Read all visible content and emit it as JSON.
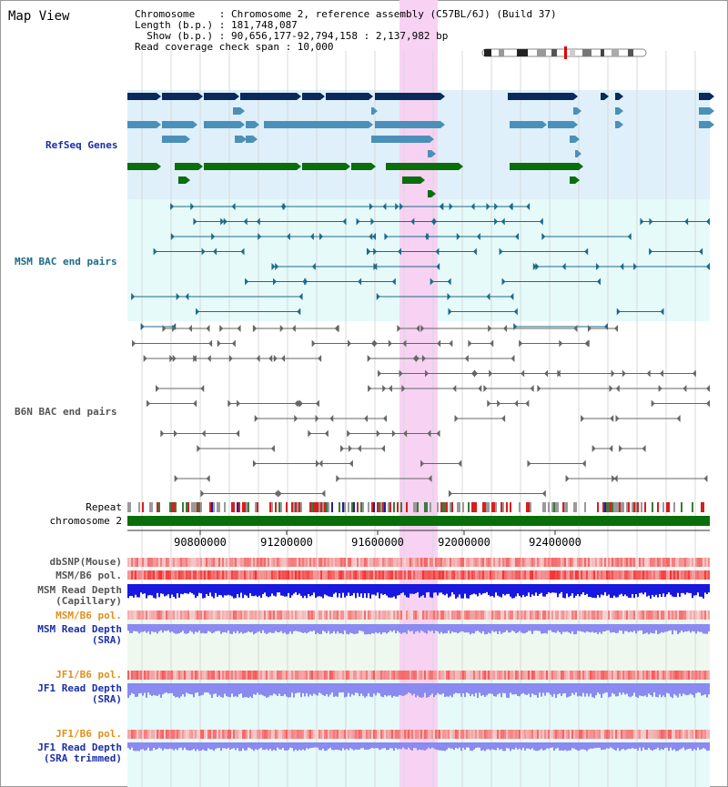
{
  "view_title": "Map View",
  "info": {
    "chromosome": "Chromosome    : Chromosome 2, reference assembly (C57BL/6J) (Build 37)",
    "length": "Length (b.p.) : 181,748,087",
    "show": "  Show (b.p.) : 90,656,177-92,794,158 : 2,137,982 bp",
    "coverage": "Read coverage check span : 10,000"
  },
  "tracks": {
    "refseq": "RefSeq Genes",
    "msm_bac": "MSM BAC end pairs",
    "b6n_bac": "B6N BAC end pairs",
    "repeat": "Repeat",
    "chromosome": "chromosome 2",
    "dbsnp": "dbSNP(Mouse)",
    "msm_b6_pol_1": "MSM/B6 pol.",
    "msm_depth_cap_1": "MSM Read Depth",
    "msm_depth_cap_2": "(Capillary)",
    "msm_b6_pol_2": "MSM/B6 pol.",
    "msm_depth_sra_1": "MSM Read Depth",
    "msm_depth_sra_2": "(SRA)",
    "jf1_b6_pol_1": "JF1/B6 pol.",
    "jf1_depth_sra_1": "JF1 Read Depth",
    "jf1_depth_sra_2": "(SRA)",
    "jf1_b6_pol_2": "JF1/B6 pol.",
    "jf1_depth_trim_1": "JF1 Read Depth",
    "jf1_depth_trim_2": "(SRA trimmed)"
  },
  "axis": {
    "ticks": [
      "90800000",
      "91200000",
      "91600000",
      "92000000",
      "92400000"
    ]
  },
  "colors": {
    "refseq_bg": "#dff0fa",
    "bac_bg": "#e6fafa",
    "highlight": "#f7d2f3",
    "refseq_dark": "#0a2a5c",
    "refseq_mid": "#4a90b8",
    "refseq_green": "#0a6e0a",
    "msm_pair": "#1c6b8a",
    "b6n_pair": "#666666",
    "chromosome": "#0a6e0a",
    "depth_dark": "#1818e0",
    "depth_light": "#8a8af0",
    "pol_red": "#f03030",
    "pol_pink": "#f7b0b0",
    "label_blue": "#1c2fa8",
    "label_orange": "#e0901a"
  }
}
